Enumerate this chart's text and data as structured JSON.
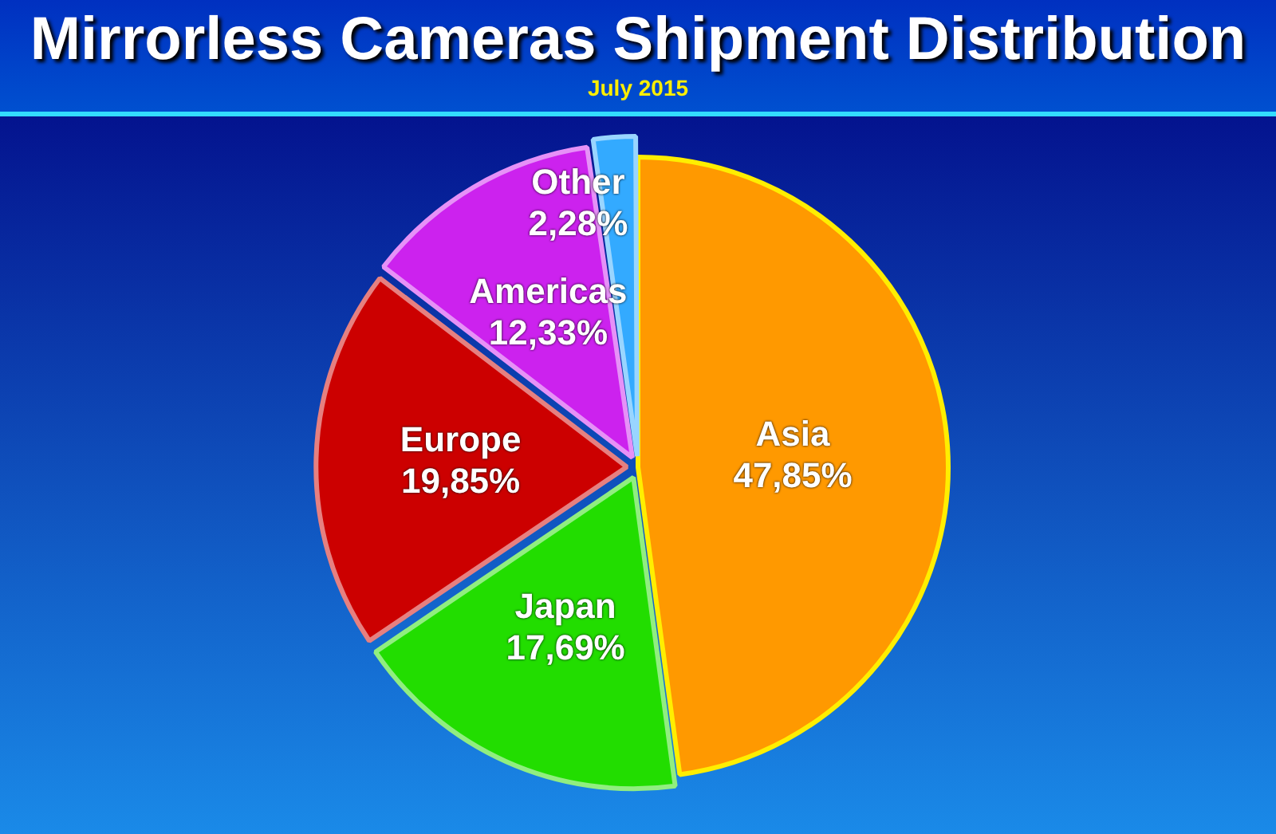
{
  "chart_data": {
    "type": "pie",
    "title": "Mirrorless Cameras Shipment Distribution",
    "subtitle": "July 2015",
    "categories": [
      "Asia",
      "Japan",
      "Europe",
      "Americas",
      "Other"
    ],
    "values": [
      47.85,
      17.69,
      19.85,
      12.33,
      2.28
    ],
    "value_labels": [
      "47,85%",
      "17,69%",
      "19,85%",
      "12,33%",
      "2,28%"
    ],
    "colors": [
      "#ff9900",
      "#22dd00",
      "#cc0000",
      "#cc22ee",
      "#33aaff"
    ],
    "legend": false
  }
}
